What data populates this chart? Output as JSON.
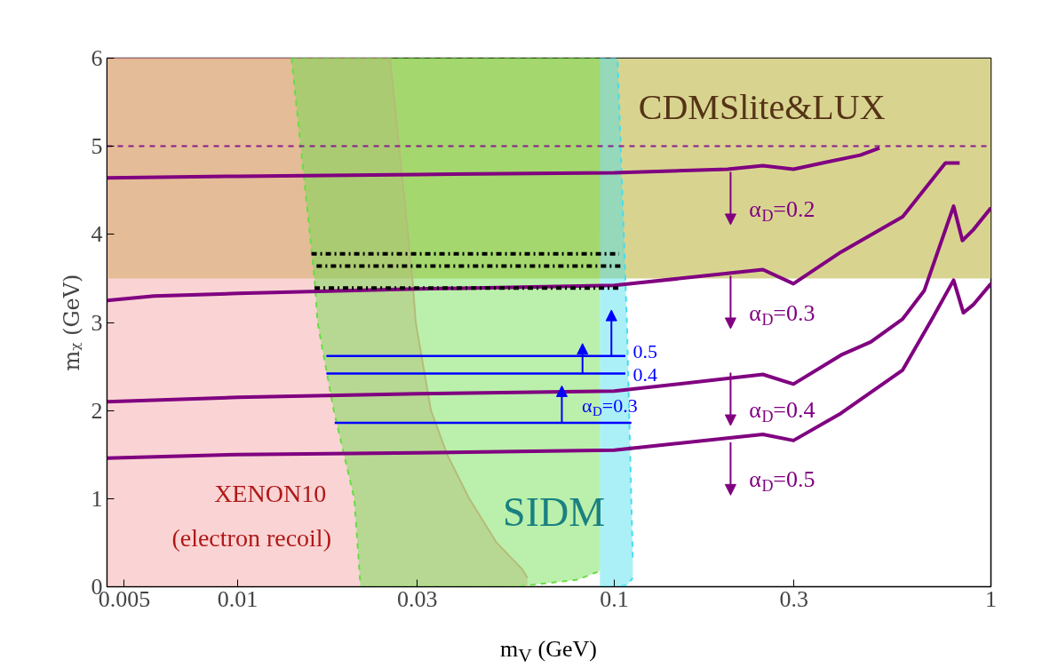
{
  "chart_data": {
    "type": "line",
    "xlabel": "m$_{V}$ (GeV)",
    "ylabel": "mᵪ (GeV)",
    "log": "x",
    "xlim": [
      0.0045,
      1
    ],
    "xticks": [
      0.005,
      0.01,
      0.03,
      0.1,
      0.3,
      1
    ],
    "ylim": [
      0,
      6
    ],
    "yticks": [
      0,
      1,
      2,
      3,
      4,
      5,
      6
    ],
    "grid": false,
    "series": [
      {
        "type": "area",
        "x": [
          0.0045,
          0.0254,
          0.0291,
          0.0297,
          0.0326,
          0.036,
          0.0412,
          0.0487,
          0.0569,
          0.0588
        ],
        "values": [
          6,
          6,
          3.5,
          3,
          2,
          1.5,
          1,
          0.5,
          0.2,
          0.1
        ],
        "color": "#f4a0a0",
        "line_style": "solid"
      },
      {
        "x": [
          0.0916,
          0.102,
          0.108,
          0.112
        ],
        "values": [
          0,
          0,
          0.02,
          0.1
        ],
        "lower": [
          0,
          0,
          0.02,
          0.1
        ],
        "upper": [
          6,
          6,
          3,
          0.3
        ],
        "color": "#44ddee",
        "line_style": "dashed"
      },
      {
        "x": [
          0.0139,
          0.016,
          0.0163,
          0.018,
          0.0204,
          0.0212,
          0.055,
          0.08,
          0.0916
        ],
        "values": [
          6,
          3.5,
          3,
          2,
          1,
          0,
          0,
          0.08,
          0.18
        ],
        "lower": [
          6,
          3.5,
          3,
          2,
          1,
          0,
          0,
          0.08,
          0.18
        ],
        "upper": [
          6,
          6,
          6,
          6,
          6,
          6,
          6,
          6,
          6
        ],
        "color": "#66dd44",
        "line_style": "dashed"
      },
      {
        "x": [
          0.0045,
          0.01,
          0.03,
          0.1,
          0.2,
          0.248,
          0.299,
          0.366,
          0.45,
          0.506
        ],
        "values": [
          4.64,
          4.66,
          4.68,
          4.7,
          4.74,
          4.78,
          4.74,
          4.82,
          4.9,
          4.98
        ],
        "color": "#800080",
        "line_style": "solid"
      },
      {
        "x": [
          0.0045,
          0.006,
          0.01,
          0.03,
          0.1,
          0.248,
          0.299,
          0.4,
          0.583,
          0.757,
          0.826
        ],
        "values": [
          3.25,
          3.3,
          3.33,
          3.38,
          3.42,
          3.6,
          3.44,
          3.8,
          4.2,
          4.81,
          4.81
        ],
        "color": "#800080",
        "line_style": "solid"
      },
      {
        "x": [
          0.0045,
          0.01,
          0.03,
          0.1,
          0.248,
          0.299,
          0.4,
          0.48,
          0.583,
          0.665,
          0.796,
          0.84,
          0.897,
          1.0
        ],
        "values": [
          2.1,
          2.15,
          2.19,
          2.22,
          2.41,
          2.3,
          2.63,
          2.78,
          3.04,
          3.36,
          4.32,
          3.93,
          4.05,
          4.3
        ],
        "color": "#800080",
        "line_style": "solid"
      },
      {
        "x": [
          0.0045,
          0.01,
          0.03,
          0.1,
          0.248,
          0.299,
          0.4,
          0.583,
          0.7,
          0.796,
          0.845,
          0.897,
          1.0
        ],
        "values": [
          1.46,
          1.5,
          1.52,
          1.55,
          1.73,
          1.66,
          1.97,
          2.46,
          3.05,
          3.48,
          3.11,
          3.2,
          3.44
        ],
        "color": "#800080",
        "line_style": "solid"
      },
      {
        "x": [
          0.0157,
          0.103
        ],
        "values": [
          3.78,
          3.78
        ],
        "color": "#000000",
        "line_style": "dashdot"
      },
      {
        "x": [
          0.0162,
          0.106
        ],
        "values": [
          3.64,
          3.64
        ],
        "color": "#000000",
        "line_style": "dashdot"
      },
      {
        "x": [
          0.016,
          0.104
        ],
        "values": [
          3.39,
          3.39
        ],
        "color": "#000000",
        "line_style": "dashdot"
      },
      {
        "x": [
          0.0172,
          0.107
        ],
        "values": [
          2.62,
          2.62
        ],
        "color": "#0000ff",
        "line_style": "solid"
      },
      {
        "x": [
          0.0172,
          0.107
        ],
        "values": [
          2.42,
          2.42
        ],
        "color": "#0000ff",
        "line_style": "solid"
      },
      {
        "x": [
          0.0181,
          0.111
        ],
        "values": [
          1.86,
          1.86
        ],
        "color": "#0000ff",
        "line_style": "solid"
      }
    ],
    "bands": [
      {
        "axis": "y",
        "from": 3.5,
        "to": 6,
        "label": "CDMSlite&LUX",
        "color": "#d8d490"
      }
    ],
    "ref_lines": [
      {
        "axis": "y",
        "value": 5,
        "color": "#8b1a8b",
        "line_style": "dashed"
      }
    ],
    "annotations": [
      "XENON10",
      "(electron recoil)",
      "SIDM",
      "α$_{D}$=0.2",
      "α$_{D}$=0.3",
      "α$_{D}$=0.4",
      "α$_{D}$=0.5",
      "0.5",
      "0.4",
      "α$_{D}$=0.3"
    ]
  }
}
